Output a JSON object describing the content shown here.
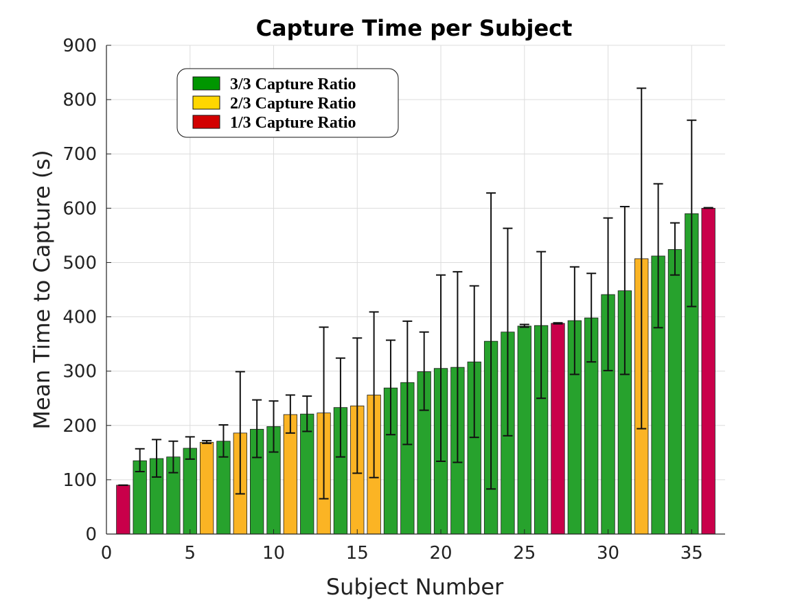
{
  "chart_data": {
    "type": "bar",
    "title": "Capture Time per Subject",
    "xlabel": "Subject Number",
    "ylabel": "Mean Time to Capture (s)",
    "xlim": [
      0,
      37
    ],
    "ylim": [
      0,
      900
    ],
    "xticks": [
      0,
      5,
      10,
      15,
      20,
      25,
      30,
      35
    ],
    "yticks": [
      0,
      100,
      200,
      300,
      400,
      500,
      600,
      700,
      800,
      900
    ],
    "grid": true,
    "legend_position": "top-left",
    "legend": [
      {
        "label": "3/3 Capture Ratio",
        "swatch_color": "#009600",
        "group": "3/3"
      },
      {
        "label": "2/3 Capture Ratio",
        "swatch_color": "#ffd700",
        "group": "2/3"
      },
      {
        "label": "1/3 Capture Ratio",
        "swatch_color": "#d20000",
        "group": "1/3"
      }
    ],
    "group_colors": {
      "3/3": "#27a22d",
      "2/3": "#fbb424",
      "1/3": "#c9004a"
    },
    "bars": [
      {
        "x": 1,
        "value": 90,
        "err_low": 90,
        "err_high": 90,
        "group": "1/3"
      },
      {
        "x": 2,
        "value": 135,
        "err_low": 115,
        "err_high": 157,
        "group": "3/3"
      },
      {
        "x": 3,
        "value": 139,
        "err_low": 105,
        "err_high": 174,
        "group": "3/3"
      },
      {
        "x": 4,
        "value": 142,
        "err_low": 113,
        "err_high": 171,
        "group": "3/3"
      },
      {
        "x": 5,
        "value": 158,
        "err_low": 138,
        "err_high": 179,
        "group": "3/3"
      },
      {
        "x": 6,
        "value": 169,
        "err_low": 167,
        "err_high": 172,
        "group": "2/3"
      },
      {
        "x": 7,
        "value": 171,
        "err_low": 142,
        "err_high": 201,
        "group": "3/3"
      },
      {
        "x": 8,
        "value": 186,
        "err_low": 74,
        "err_high": 299,
        "group": "2/3"
      },
      {
        "x": 9,
        "value": 193,
        "err_low": 141,
        "err_high": 247,
        "group": "3/3"
      },
      {
        "x": 10,
        "value": 198,
        "err_low": 151,
        "err_high": 245,
        "group": "3/3"
      },
      {
        "x": 11,
        "value": 220,
        "err_low": 186,
        "err_high": 256,
        "group": "2/3"
      },
      {
        "x": 12,
        "value": 221,
        "err_low": 189,
        "err_high": 254,
        "group": "3/3"
      },
      {
        "x": 13,
        "value": 223,
        "err_low": 65,
        "err_high": 381,
        "group": "2/3"
      },
      {
        "x": 14,
        "value": 233,
        "err_low": 142,
        "err_high": 324,
        "group": "3/3"
      },
      {
        "x": 15,
        "value": 236,
        "err_low": 112,
        "err_high": 361,
        "group": "2/3"
      },
      {
        "x": 16,
        "value": 256,
        "err_low": 104,
        "err_high": 409,
        "group": "2/3"
      },
      {
        "x": 17,
        "value": 269,
        "err_low": 183,
        "err_high": 357,
        "group": "3/3"
      },
      {
        "x": 18,
        "value": 279,
        "err_low": 165,
        "err_high": 392,
        "group": "3/3"
      },
      {
        "x": 19,
        "value": 299,
        "err_low": 228,
        "err_high": 372,
        "group": "3/3"
      },
      {
        "x": 20,
        "value": 305,
        "err_low": 134,
        "err_high": 477,
        "group": "3/3"
      },
      {
        "x": 21,
        "value": 307,
        "err_low": 132,
        "err_high": 483,
        "group": "3/3"
      },
      {
        "x": 22,
        "value": 317,
        "err_low": 178,
        "err_high": 457,
        "group": "3/3"
      },
      {
        "x": 23,
        "value": 355,
        "err_low": 83,
        "err_high": 628,
        "group": "3/3"
      },
      {
        "x": 24,
        "value": 372,
        "err_low": 181,
        "err_high": 563,
        "group": "3/3"
      },
      {
        "x": 25,
        "value": 383,
        "err_low": 381,
        "err_high": 386,
        "group": "3/3"
      },
      {
        "x": 26,
        "value": 384,
        "err_low": 250,
        "err_high": 520,
        "group": "3/3"
      },
      {
        "x": 27,
        "value": 388,
        "err_low": 387,
        "err_high": 389,
        "group": "1/3"
      },
      {
        "x": 28,
        "value": 393,
        "err_low": 294,
        "err_high": 492,
        "group": "3/3"
      },
      {
        "x": 29,
        "value": 398,
        "err_low": 317,
        "err_high": 480,
        "group": "3/3"
      },
      {
        "x": 30,
        "value": 441,
        "err_low": 301,
        "err_high": 582,
        "group": "3/3"
      },
      {
        "x": 31,
        "value": 448,
        "err_low": 294,
        "err_high": 603,
        "group": "3/3"
      },
      {
        "x": 32,
        "value": 507,
        "err_low": 194,
        "err_high": 821,
        "group": "2/3"
      },
      {
        "x": 33,
        "value": 512,
        "err_low": 380,
        "err_high": 645,
        "group": "3/3"
      },
      {
        "x": 34,
        "value": 524,
        "err_low": 477,
        "err_high": 573,
        "group": "3/3"
      },
      {
        "x": 35,
        "value": 590,
        "err_low": 419,
        "err_high": 762,
        "group": "3/3"
      },
      {
        "x": 36,
        "value": 600,
        "err_low": 600,
        "err_high": 601,
        "group": "1/3"
      }
    ]
  }
}
